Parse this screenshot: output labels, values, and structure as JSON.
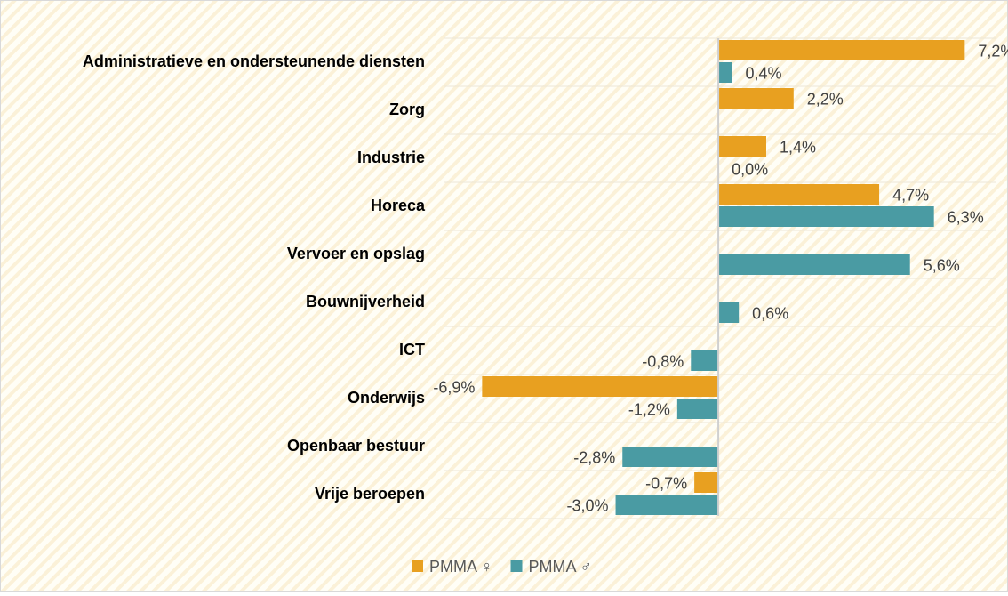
{
  "chart_data": {
    "type": "hbar",
    "categories": [
      "Administratieve en ondersteunende diensten",
      "Zorg",
      "Industrie",
      "Horeca",
      "Vervoer en opslag",
      "Bouwnijverheid",
      "ICT",
      "Onderwijs",
      "Openbaar bestuur",
      "Vrije beroepen"
    ],
    "series": [
      {
        "name": "PMMA ♀",
        "color": "#e8a020",
        "values": [
          7.2,
          2.2,
          1.4,
          4.7,
          null,
          null,
          null,
          -6.9,
          null,
          -0.7
        ],
        "value_labels": [
          "7,2%",
          "2,2%",
          "1,4%",
          "4,7%",
          null,
          null,
          null,
          "-6,9%",
          null,
          "-0,7%"
        ]
      },
      {
        "name": "PMMA ♂",
        "color": "#4a9ba3",
        "values": [
          0.4,
          null,
          0.0,
          6.3,
          5.6,
          0.6,
          -0.8,
          -1.2,
          -2.8,
          -3.0
        ],
        "value_labels": [
          "0,4%",
          null,
          "0,0%",
          "6,3%",
          "5,6%",
          "0,6%",
          "-0,8%",
          "-1,2%",
          "-2,8%",
          "-3,0%"
        ]
      }
    ],
    "xlim": [
      -8,
      8.1
    ],
    "legend": "bottom"
  }
}
